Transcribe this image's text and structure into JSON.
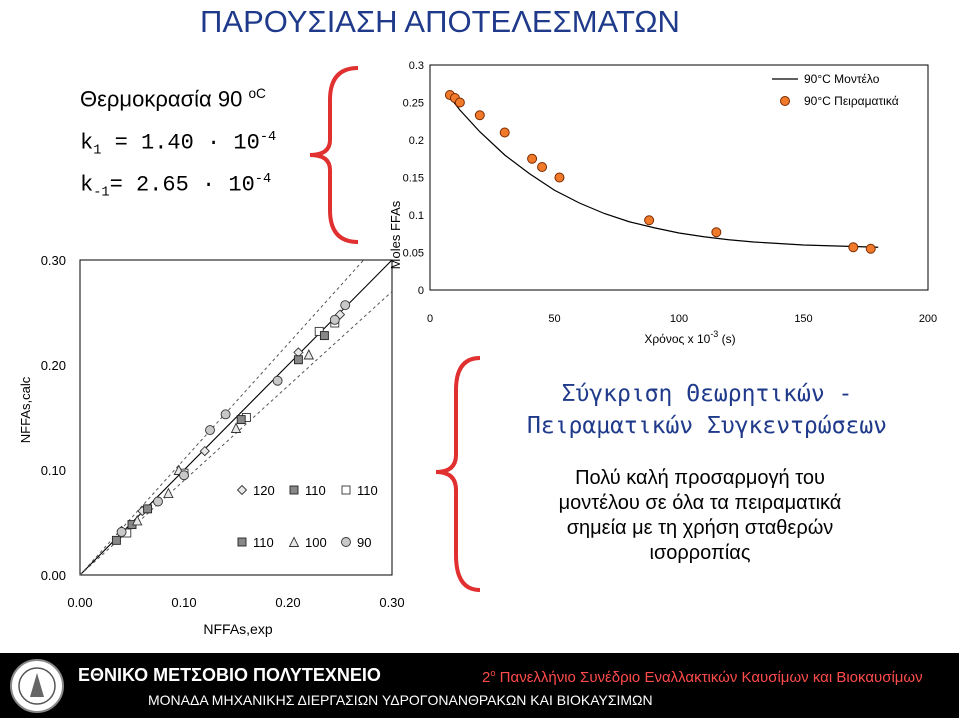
{
  "title": "ΠΑΡΟΥΣΙΑΣΗ ΑΠΟΤΕΛΕΣΜΑΤΩΝ",
  "parameters": {
    "temperature_label": "Θερμοκρασία 90",
    "temperature_unit": "oC",
    "k1_label": "k",
    "k1_sub": "1",
    "k1_value": " = 1.40 · 10",
    "k1_exp": "-4",
    "km1_label": "k",
    "km1_sub": "-1",
    "km1_value": "= 2.65 · 10",
    "km1_exp": "-4"
  },
  "comparison": {
    "title_line1": "Σύγκριση Θεωρητικών -",
    "title_line2": "Πειραματικών Συγκεντρώσεων",
    "body_line1": "Πολύ καλή προσαρμογή του",
    "body_line2": "μοντέλου σε όλα τα πειραματικά",
    "body_line3": "σημεία με τη χρήση σταθερών",
    "body_line4": "ισορροπίας"
  },
  "footer": {
    "university": "ΕΘΝΙΚΟ ΜΕΤΣΟΒΙΟ ΠΟΛΥΤΕΧΝΕΙΟ",
    "conference_num": "2",
    "conference_sup": "o",
    "conference_text": " Πανελλήνιο Συνέδριο Εναλλακτικών Καυσίμων και Βιοκαυσίμων",
    "lab": "ΜΟΝΑΔΑ ΜΗΧΑΝΙΚΗΣ ΔΙΕΡΓΑΣΙΩΝ ΥΔΡΟΓΟΝΑΝΘΡΑΚΩΝ ΚΑΙ ΒΙΟΚΑΥΣΙΜΩΝ"
  },
  "colors": {
    "title": "#1f3a8a",
    "experimental_marker": "#f07a2a",
    "footer_conf": "#ff4b4b"
  },
  "chart_data": [
    {
      "type": "line",
      "xlabel": "Χρόνος x 10",
      "xlabel_exp": "-3",
      "xlabel_unit": " (s)",
      "ylabel": "Moles FFAs",
      "xlim": [
        0,
        200
      ],
      "ylim": [
        0,
        0.3
      ],
      "x_ticks": [
        "0",
        "50",
        "100",
        "150",
        "200"
      ],
      "y_ticks": [
        "0",
        "0.05",
        "0.1",
        "0.15",
        "0.2",
        "0.25",
        "0.3"
      ],
      "grid": false,
      "legend_position": "top-right",
      "series": [
        {
          "name": "90°C Μοντέλο",
          "kind": "line",
          "x": [
            8,
            12,
            20,
            30,
            40,
            50,
            60,
            70,
            80,
            90,
            100,
            110,
            120,
            130,
            140,
            150,
            160,
            170,
            180
          ],
          "y": [
            0.257,
            0.24,
            0.211,
            0.18,
            0.155,
            0.133,
            0.116,
            0.102,
            0.091,
            0.083,
            0.076,
            0.071,
            0.067,
            0.064,
            0.062,
            0.06,
            0.059,
            0.058,
            0.057
          ]
        },
        {
          "name": "90°C Πειραματικά",
          "kind": "scatter",
          "x": [
            8,
            10,
            12,
            20,
            30,
            41,
            45,
            52,
            88,
            115,
            170,
            177
          ],
          "y": [
            0.26,
            0.256,
            0.25,
            0.233,
            0.21,
            0.175,
            0.164,
            0.15,
            0.093,
            0.077,
            0.057,
            0.055
          ]
        }
      ]
    },
    {
      "type": "scatter",
      "xlabel": "NFFAs,exp",
      "ylabel": "NFFAs,calc",
      "xlim": [
        0,
        0.3
      ],
      "ylim": [
        0,
        0.3
      ],
      "x_ticks": [
        "0.00",
        "0.10",
        "0.20",
        "0.30"
      ],
      "y_ticks": [
        "0.00",
        "0.10",
        "0.20",
        "0.30"
      ],
      "grid": false,
      "legend_position": "bottom-right",
      "series": [
        {
          "name": "120",
          "marker": "diamond",
          "x": [
            0.04,
            0.06,
            0.12,
            0.21,
            0.25
          ],
          "y": [
            0.042,
            0.061,
            0.118,
            0.212,
            0.248
          ]
        },
        {
          "name": "110",
          "marker": "square-light",
          "x": [
            0.045,
            0.1,
            0.16,
            0.23,
            0.245
          ],
          "y": [
            0.04,
            0.097,
            0.15,
            0.232,
            0.24
          ]
        },
        {
          "name": "110",
          "marker": "square-dark",
          "x": [
            0.035,
            0.05,
            0.065,
            0.155,
            0.21,
            0.235
          ],
          "y": [
            0.033,
            0.048,
            0.063,
            0.148,
            0.205,
            0.228
          ]
        },
        {
          "name": "100",
          "marker": "triangle",
          "x": [
            0.055,
            0.085,
            0.095,
            0.15,
            0.22
          ],
          "y": [
            0.052,
            0.078,
            0.1,
            0.14,
            0.21
          ]
        },
        {
          "name": "90",
          "marker": "circle",
          "x": [
            0.04,
            0.075,
            0.1,
            0.125,
            0.14,
            0.19,
            0.245,
            0.255
          ],
          "y": [
            0.041,
            0.07,
            0.095,
            0.138,
            0.153,
            0.185,
            0.243,
            0.257
          ]
        }
      ],
      "reference_lines": [
        "y=x",
        "±10%"
      ]
    }
  ]
}
